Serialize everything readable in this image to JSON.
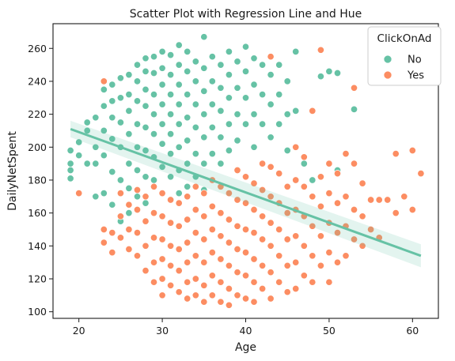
{
  "chart_data": {
    "type": "scatter",
    "title": "Scatter Plot with Regression Line and Hue",
    "xlabel": "Age",
    "ylabel": "DailyNetSpent",
    "xlim": [
      16.9,
      63.1
    ],
    "ylim": [
      96,
      275
    ],
    "xticks": [
      20,
      30,
      40,
      50,
      60
    ],
    "yticks": [
      100,
      120,
      140,
      160,
      180,
      200,
      220,
      240,
      260
    ],
    "grid": false,
    "legend": {
      "title": "ClickOnAd",
      "position": "top-right"
    },
    "series": [
      {
        "name": "No",
        "color": "#66c2a5",
        "points": [
          [
            19,
            198
          ],
          [
            19,
            190
          ],
          [
            19,
            186
          ],
          [
            19,
            181
          ],
          [
            20,
            203
          ],
          [
            20,
            195
          ],
          [
            21,
            215
          ],
          [
            21,
            210
          ],
          [
            21,
            190
          ],
          [
            22,
            218
          ],
          [
            22,
            200
          ],
          [
            22,
            190
          ],
          [
            22,
            170
          ],
          [
            23,
            235
          ],
          [
            23,
            225
          ],
          [
            23,
            210
          ],
          [
            23,
            195
          ],
          [
            23,
            172
          ],
          [
            24,
            238
          ],
          [
            24,
            228
          ],
          [
            24,
            218
          ],
          [
            24,
            205
          ],
          [
            24,
            185
          ],
          [
            24,
            165
          ],
          [
            25,
            242
          ],
          [
            25,
            230
          ],
          [
            25,
            215
          ],
          [
            25,
            200
          ],
          [
            25,
            180
          ],
          [
            25,
            155
          ],
          [
            26,
            244
          ],
          [
            26,
            232
          ],
          [
            26,
            222
          ],
          [
            26,
            208
          ],
          [
            26,
            190
          ],
          [
            26,
            175
          ],
          [
            26,
            160
          ],
          [
            27,
            250
          ],
          [
            27,
            240
          ],
          [
            27,
            228
          ],
          [
            27,
            214
          ],
          [
            27,
            200
          ],
          [
            27,
            186
          ],
          [
            27,
            170
          ],
          [
            28,
            254
          ],
          [
            28,
            246
          ],
          [
            28,
            235
          ],
          [
            28,
            225
          ],
          [
            28,
            212
          ],
          [
            28,
            198
          ],
          [
            28,
            182
          ],
          [
            28,
            166
          ],
          [
            29,
            255
          ],
          [
            29,
            245
          ],
          [
            29,
            232
          ],
          [
            29,
            220
          ],
          [
            29,
            208
          ],
          [
            29,
            194
          ],
          [
            29,
            180
          ],
          [
            29,
            160
          ],
          [
            30,
            258
          ],
          [
            30,
            248
          ],
          [
            30,
            238
          ],
          [
            30,
            226
          ],
          [
            30,
            214
          ],
          [
            30,
            202
          ],
          [
            30,
            188
          ],
          [
            30,
            172
          ],
          [
            30,
            158
          ],
          [
            31,
            256
          ],
          [
            31,
            244
          ],
          [
            31,
            232
          ],
          [
            31,
            220
          ],
          [
            31,
            208
          ],
          [
            31,
            196
          ],
          [
            31,
            182
          ],
          [
            31,
            168
          ],
          [
            32,
            262
          ],
          [
            32,
            250
          ],
          [
            32,
            238
          ],
          [
            32,
            226
          ],
          [
            32,
            214
          ],
          [
            32,
            200
          ],
          [
            32,
            186
          ],
          [
            32,
            172
          ],
          [
            33,
            258
          ],
          [
            33,
            246
          ],
          [
            33,
            232
          ],
          [
            33,
            218
          ],
          [
            33,
            204
          ],
          [
            33,
            190
          ],
          [
            33,
            176
          ],
          [
            34,
            252
          ],
          [
            34,
            240
          ],
          [
            34,
            226
          ],
          [
            34,
            212
          ],
          [
            34,
            196
          ],
          [
            34,
            182
          ],
          [
            35,
            267
          ],
          [
            35,
            248
          ],
          [
            35,
            234
          ],
          [
            35,
            220
          ],
          [
            35,
            206
          ],
          [
            35,
            190
          ],
          [
            35,
            174
          ],
          [
            36,
            255
          ],
          [
            36,
            240
          ],
          [
            36,
            226
          ],
          [
            36,
            212
          ],
          [
            36,
            196
          ],
          [
            37,
            250
          ],
          [
            37,
            236
          ],
          [
            37,
            222
          ],
          [
            37,
            206
          ],
          [
            37,
            190
          ],
          [
            38,
            258
          ],
          [
            38,
            244
          ],
          [
            38,
            230
          ],
          [
            38,
            214
          ],
          [
            38,
            198
          ],
          [
            39,
            252
          ],
          [
            39,
            236
          ],
          [
            39,
            220
          ],
          [
            39,
            204
          ],
          [
            40,
            261
          ],
          [
            40,
            246
          ],
          [
            40,
            230
          ],
          [
            40,
            214
          ],
          [
            41,
            254
          ],
          [
            41,
            238
          ],
          [
            41,
            220
          ],
          [
            41,
            200
          ],
          [
            42,
            250
          ],
          [
            42,
            232
          ],
          [
            42,
            214
          ],
          [
            43,
            244
          ],
          [
            43,
            226
          ],
          [
            43,
            206
          ],
          [
            44,
            250
          ],
          [
            44,
            232
          ],
          [
            44,
            214
          ],
          [
            45,
            240
          ],
          [
            45,
            220
          ],
          [
            45,
            198
          ],
          [
            46,
            258
          ],
          [
            46,
            222
          ],
          [
            46,
            200
          ],
          [
            49,
            243
          ],
          [
            50,
            246
          ],
          [
            51,
            245
          ],
          [
            51,
            186
          ],
          [
            53,
            223
          ],
          [
            47,
            190
          ],
          [
            48,
            180
          ]
        ]
      },
      {
        "name": "Yes",
        "color": "#fc8d62",
        "points": [
          [
            20,
            172
          ],
          [
            23,
            240
          ],
          [
            23,
            150
          ],
          [
            23,
            142
          ],
          [
            24,
            148
          ],
          [
            24,
            136
          ],
          [
            25,
            172
          ],
          [
            25,
            158
          ],
          [
            25,
            145
          ],
          [
            26,
            165
          ],
          [
            26,
            150
          ],
          [
            26,
            138
          ],
          [
            27,
            174
          ],
          [
            27,
            162
          ],
          [
            27,
            148
          ],
          [
            27,
            134
          ],
          [
            28,
            170
          ],
          [
            28,
            155
          ],
          [
            28,
            140
          ],
          [
            28,
            125
          ],
          [
            29,
            176
          ],
          [
            29,
            160
          ],
          [
            29,
            145
          ],
          [
            29,
            130
          ],
          [
            29,
            118
          ],
          [
            30,
            172
          ],
          [
            30,
            158
          ],
          [
            30,
            144
          ],
          [
            30,
            132
          ],
          [
            30,
            120
          ],
          [
            30,
            110
          ],
          [
            31,
            168
          ],
          [
            31,
            154
          ],
          [
            31,
            140
          ],
          [
            31,
            128
          ],
          [
            31,
            116
          ],
          [
            32,
            166
          ],
          [
            32,
            152
          ],
          [
            32,
            138
          ],
          [
            32,
            125
          ],
          [
            32,
            112
          ],
          [
            33,
            170
          ],
          [
            33,
            156
          ],
          [
            33,
            142
          ],
          [
            33,
            130
          ],
          [
            33,
            118
          ],
          [
            33,
            108
          ],
          [
            34,
            176
          ],
          [
            34,
            162
          ],
          [
            34,
            148
          ],
          [
            34,
            134
          ],
          [
            34,
            120
          ],
          [
            34,
            110
          ],
          [
            35,
            172
          ],
          [
            35,
            158
          ],
          [
            35,
            144
          ],
          [
            35,
            130
          ],
          [
            35,
            116
          ],
          [
            35,
            106
          ],
          [
            36,
            180
          ],
          [
            36,
            164
          ],
          [
            36,
            150
          ],
          [
            36,
            136
          ],
          [
            36,
            122
          ],
          [
            36,
            110
          ],
          [
            37,
            176
          ],
          [
            37,
            160
          ],
          [
            37,
            146
          ],
          [
            37,
            132
          ],
          [
            37,
            118
          ],
          [
            37,
            106
          ],
          [
            38,
            172
          ],
          [
            38,
            156
          ],
          [
            38,
            142
          ],
          [
            38,
            128
          ],
          [
            38,
            114
          ],
          [
            38,
            104
          ],
          [
            39,
            186
          ],
          [
            39,
            168
          ],
          [
            39,
            152
          ],
          [
            39,
            138
          ],
          [
            39,
            124
          ],
          [
            39,
            110
          ],
          [
            40,
            182
          ],
          [
            40,
            166
          ],
          [
            40,
            150
          ],
          [
            40,
            136
          ],
          [
            40,
            122
          ],
          [
            40,
            108
          ],
          [
            41,
            178
          ],
          [
            41,
            162
          ],
          [
            41,
            148
          ],
          [
            41,
            132
          ],
          [
            41,
            118
          ],
          [
            41,
            106
          ],
          [
            42,
            190
          ],
          [
            42,
            174
          ],
          [
            42,
            158
          ],
          [
            42,
            144
          ],
          [
            42,
            128
          ],
          [
            42,
            114
          ],
          [
            43,
            255
          ],
          [
            43,
            188
          ],
          [
            43,
            170
          ],
          [
            43,
            154
          ],
          [
            43,
            140
          ],
          [
            43,
            124
          ],
          [
            43,
            108
          ],
          [
            44,
            184
          ],
          [
            44,
            166
          ],
          [
            44,
            150
          ],
          [
            44,
            134
          ],
          [
            44,
            118
          ],
          [
            45,
            176
          ],
          [
            45,
            160
          ],
          [
            45,
            144
          ],
          [
            45,
            128
          ],
          [
            45,
            112
          ],
          [
            46,
            200
          ],
          [
            46,
            180
          ],
          [
            46,
            162
          ],
          [
            46,
            146
          ],
          [
            46,
            130
          ],
          [
            46,
            114
          ],
          [
            47,
            194
          ],
          [
            47,
            176
          ],
          [
            47,
            158
          ],
          [
            47,
            140
          ],
          [
            47,
            122
          ],
          [
            48,
            222
          ],
          [
            48,
            170
          ],
          [
            48,
            152
          ],
          [
            48,
            134
          ],
          [
            48,
            118
          ],
          [
            49,
            259
          ],
          [
            49,
            182
          ],
          [
            49,
            164
          ],
          [
            49,
            146
          ],
          [
            49,
            128
          ],
          [
            50,
            190
          ],
          [
            50,
            172
          ],
          [
            50,
            154
          ],
          [
            50,
            136
          ],
          [
            50,
            118
          ],
          [
            51,
            184
          ],
          [
            51,
            166
          ],
          [
            51,
            148
          ],
          [
            51,
            130
          ],
          [
            52,
            196
          ],
          [
            52,
            170
          ],
          [
            52,
            152
          ],
          [
            52,
            134
          ],
          [
            53,
            236
          ],
          [
            53,
            190
          ],
          [
            53,
            162
          ],
          [
            53,
            144
          ],
          [
            54,
            178
          ],
          [
            54,
            158
          ],
          [
            54,
            140
          ],
          [
            55,
            168
          ],
          [
            55,
            150
          ],
          [
            56,
            168
          ],
          [
            56,
            145
          ],
          [
            57,
            168
          ],
          [
            58,
            196
          ],
          [
            58,
            160
          ],
          [
            59,
            170
          ],
          [
            60,
            198
          ],
          [
            60,
            162
          ],
          [
            61,
            184
          ]
        ]
      }
    ],
    "regression": {
      "x": [
        19,
        61
      ],
      "y": [
        211,
        134
      ],
      "ci_low": [
        206,
        127
      ],
      "ci_high": [
        216,
        141
      ],
      "color": "#66c2a5"
    }
  }
}
